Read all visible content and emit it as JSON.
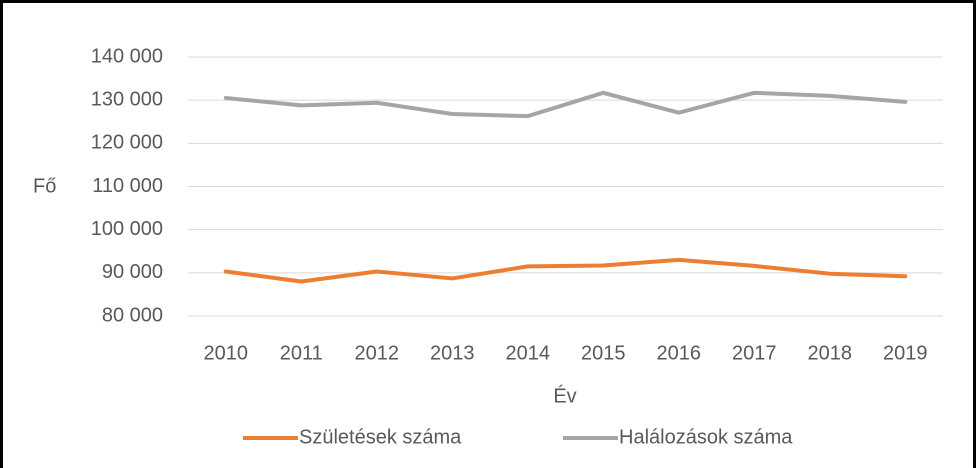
{
  "chart_data": {
    "type": "line",
    "x_label": "Év",
    "y_label": "Fő",
    "categories": [
      "2010",
      "2011",
      "2012",
      "2013",
      "2014",
      "2015",
      "2016",
      "2017",
      "2018",
      "2019"
    ],
    "series": [
      {
        "name": "Születések száma",
        "color": "#ed7d31",
        "values": [
          90300,
          88000,
          90300,
          88700,
          91500,
          91700,
          93000,
          91600,
          89800,
          89200
        ]
      },
      {
        "name": "Halálozások száma",
        "color": "#a5a5a5",
        "values": [
          130500,
          128800,
          129400,
          126800,
          126300,
          131700,
          127100,
          131700,
          131000,
          129600
        ]
      }
    ],
    "ylim": [
      80000,
      140000
    ],
    "yticks": [
      {
        "value": 80000,
        "label": "80 000"
      },
      {
        "value": 90000,
        "label": "90 000"
      },
      {
        "value": 100000,
        "label": "100 000"
      },
      {
        "value": 110000,
        "label": "110 000"
      },
      {
        "value": 120000,
        "label": "120 000"
      },
      {
        "value": 130000,
        "label": "130 000"
      },
      {
        "value": 140000,
        "label": "140 000"
      }
    ],
    "grid": true,
    "legend": "bottom"
  }
}
